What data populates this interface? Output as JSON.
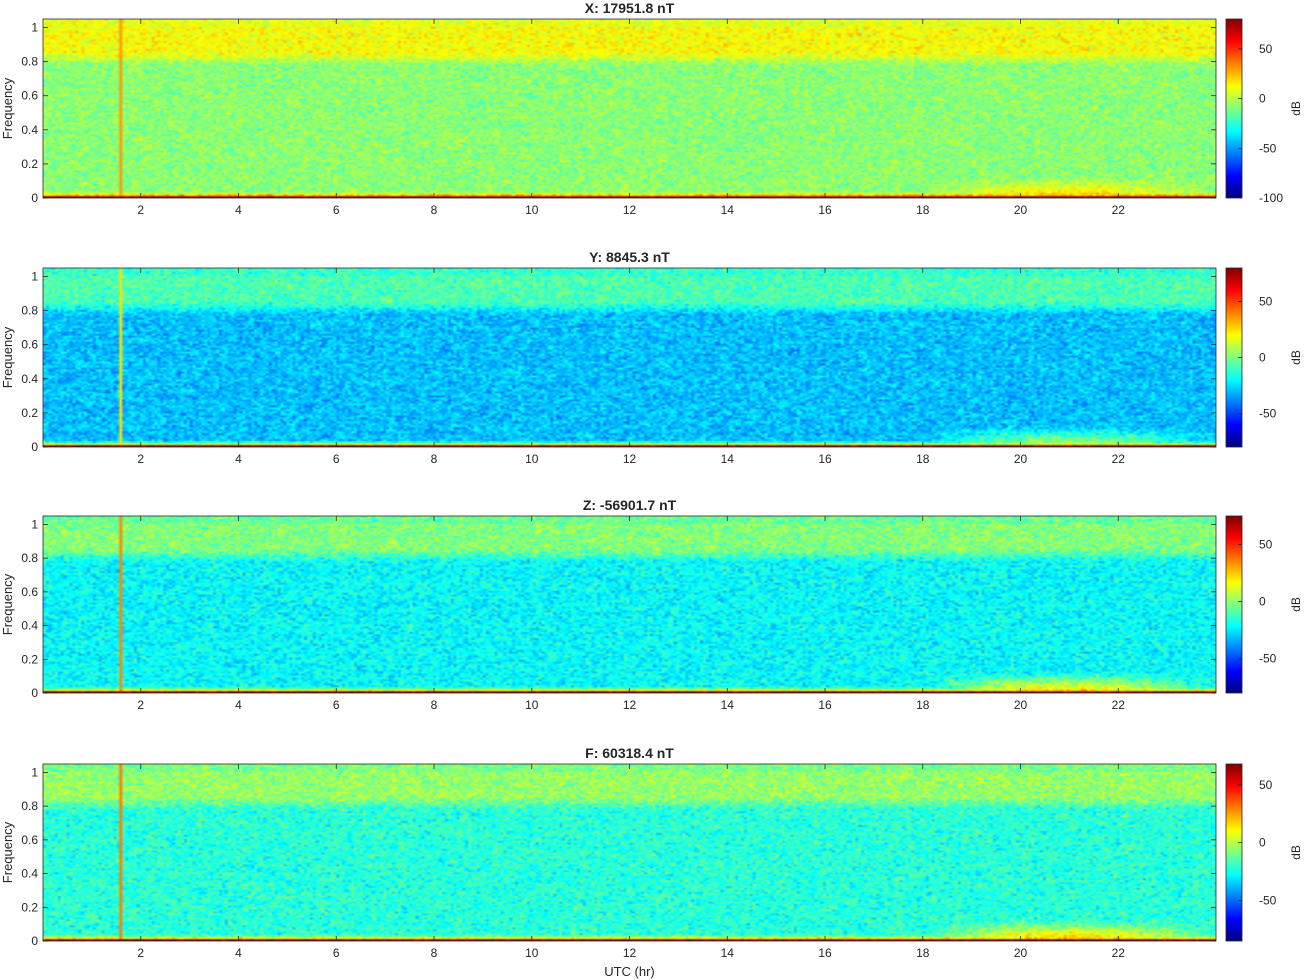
{
  "chart_data": [
    {
      "type": "heatmap",
      "title": "X: 17951.8 nT",
      "xlabel": "",
      "ylabel": "Frequency",
      "xlim": [
        0,
        24
      ],
      "ylim": [
        0,
        1.05
      ],
      "xticks": [
        2,
        4,
        6,
        8,
        10,
        12,
        14,
        16,
        18,
        20,
        22
      ],
      "yticks": [
        0,
        0.2,
        0.4,
        0.6,
        0.8,
        1
      ],
      "colorbar": {
        "label": "dB",
        "limits": [
          -100,
          80
        ],
        "ticks": [
          -100,
          -50,
          0,
          50
        ]
      },
      "colormap": "jet",
      "level_profile": {
        "background_dB": -8,
        "top_band_dB": 12,
        "lowfreq_dB": 80,
        "event_hours": [
          18,
          24
        ],
        "event_dB": 25,
        "spike_hour": 1.6,
        "spike_dB": 30
      },
      "grid": false
    },
    {
      "type": "heatmap",
      "title": "Y: 8845.3 nT",
      "xlabel": "",
      "ylabel": "Frequency",
      "xlim": [
        0,
        24
      ],
      "ylim": [
        0,
        1.05
      ],
      "xticks": [
        2,
        4,
        6,
        8,
        10,
        12,
        14,
        16,
        18,
        20,
        22
      ],
      "yticks": [
        0,
        0.2,
        0.4,
        0.6,
        0.8,
        1
      ],
      "colorbar": {
        "label": "dB",
        "limits": [
          -80,
          80
        ],
        "ticks": [
          -50,
          0,
          50
        ]
      },
      "colormap": "jet",
      "level_profile": {
        "background_dB": -30,
        "top_band_dB": -8,
        "lowfreq_dB": 78,
        "event_hours": [
          18,
          24
        ],
        "event_dB": 15,
        "spike_hour": 1.6,
        "spike_dB": 25
      },
      "grid": false
    },
    {
      "type": "heatmap",
      "title": "Z: -56901.7 nT",
      "xlabel": "",
      "ylabel": "Frequency",
      "xlim": [
        0,
        24
      ],
      "ylim": [
        0,
        1.05
      ],
      "xticks": [
        2,
        4,
        6,
        8,
        10,
        12,
        14,
        16,
        18,
        20,
        22
      ],
      "yticks": [
        0,
        0.2,
        0.4,
        0.6,
        0.8,
        1
      ],
      "colorbar": {
        "label": "dB",
        "limits": [
          -80,
          75
        ],
        "ticks": [
          -50,
          0,
          50
        ]
      },
      "colormap": "jet",
      "level_profile": {
        "background_dB": -22,
        "top_band_dB": -2,
        "lowfreq_dB": 72,
        "event_hours": [
          18,
          24
        ],
        "event_dB": 30,
        "spike_hour": 1.6,
        "spike_dB": 35
      },
      "grid": false
    },
    {
      "type": "heatmap",
      "title": "F: 60318.4 nT",
      "xlabel": "UTC (hr)",
      "ylabel": "Frequency",
      "xlim": [
        0,
        24
      ],
      "ylim": [
        0,
        1.05
      ],
      "xticks": [
        2,
        4,
        6,
        8,
        10,
        12,
        14,
        16,
        18,
        20,
        22
      ],
      "yticks": [
        0,
        0.2,
        0.4,
        0.6,
        0.8,
        1
      ],
      "colorbar": {
        "label": "dB",
        "limits": [
          -85,
          68
        ],
        "ticks": [
          -50,
          0,
          50
        ]
      },
      "colormap": "jet",
      "level_profile": {
        "background_dB": -22,
        "top_band_dB": -5,
        "lowfreq_dB": 66,
        "event_hours": [
          18,
          24
        ],
        "event_dB": 28,
        "spike_hour": 1.6,
        "spike_dB": 30
      },
      "grid": false
    }
  ]
}
